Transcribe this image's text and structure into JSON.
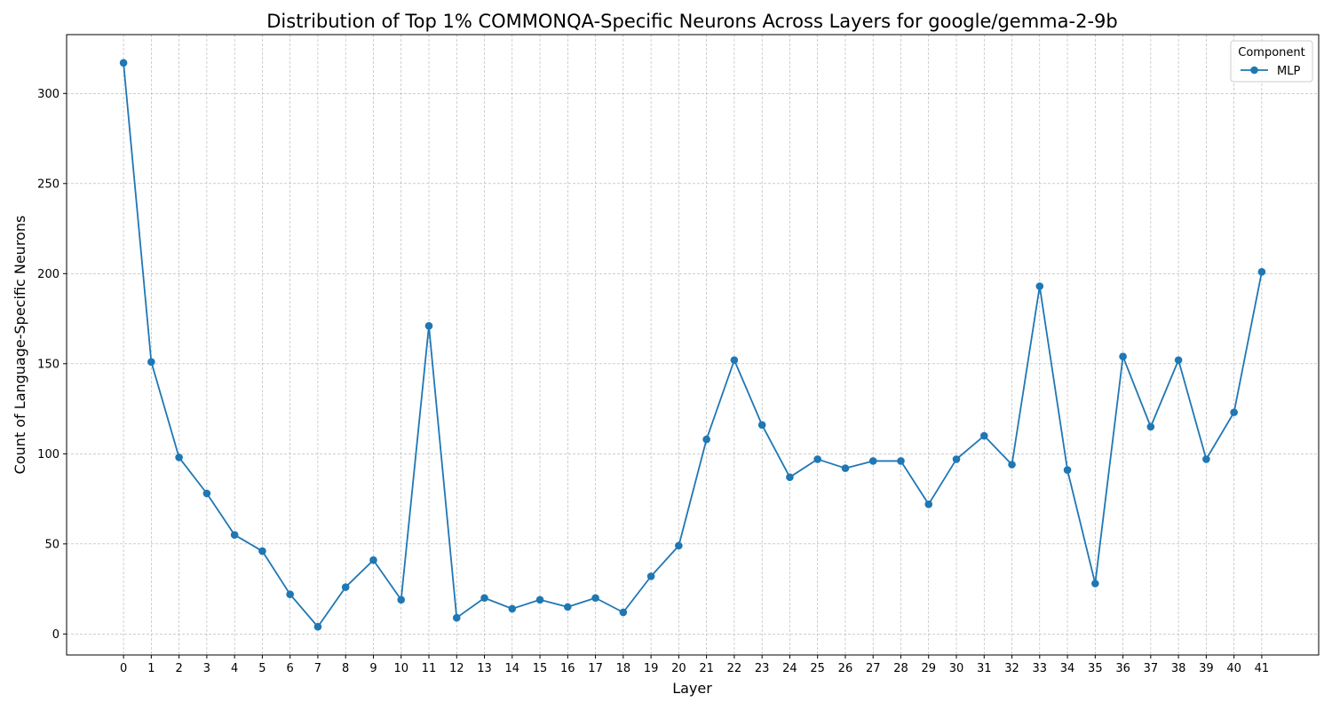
{
  "chart_data": {
    "type": "line",
    "title": "Distribution of Top 1% COMMONQA-Specific Neurons Across Layers for google/gemma-2-9b",
    "xlabel": "Layer",
    "ylabel": "Count of Language-Specific Neurons",
    "x": [
      0,
      1,
      2,
      3,
      4,
      5,
      6,
      7,
      8,
      9,
      10,
      11,
      12,
      13,
      14,
      15,
      16,
      17,
      18,
      19,
      20,
      21,
      22,
      23,
      24,
      25,
      26,
      27,
      28,
      29,
      30,
      31,
      32,
      33,
      34,
      35,
      36,
      37,
      38,
      39,
      40,
      41
    ],
    "series": [
      {
        "name": "MLP",
        "color": "#1f77b4",
        "values": [
          317,
          151,
          98,
          78,
          55,
          46,
          22,
          4,
          26,
          41,
          19,
          171,
          9,
          20,
          14,
          19,
          15,
          20,
          12,
          32,
          49,
          108,
          152,
          116,
          87,
          97,
          92,
          96,
          96,
          72,
          97,
          110,
          94,
          193,
          91,
          28,
          154,
          115,
          152,
          97,
          123,
          201
        ]
      }
    ],
    "xlim": [
      -2.05,
      43.05
    ],
    "ylim": [
      -11.65,
      332.65
    ],
    "yticks": [
      0,
      50,
      100,
      150,
      200,
      250,
      300
    ],
    "grid": true,
    "legend": {
      "title": "Component",
      "placement": "top-right"
    }
  }
}
